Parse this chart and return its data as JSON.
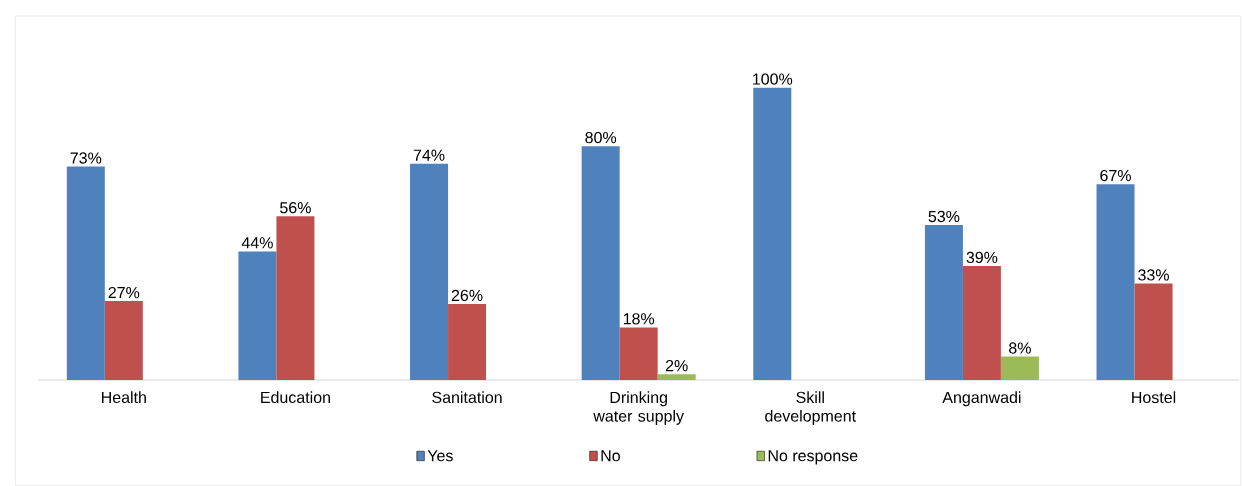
{
  "chart_data": {
    "type": "bar",
    "categories": [
      "Health",
      "Education",
      "Sanitation",
      "Drinking water supply",
      "Skill development",
      "Anganwadi",
      "Hostel"
    ],
    "series": [
      {
        "name": "Yes",
        "color": "#4f81bd",
        "values": [
          73,
          44,
          74,
          80,
          100,
          53,
          67
        ],
        "value_labels": [
          "73%",
          "44%",
          "74%",
          "80%",
          "100%",
          "53%",
          "67%"
        ]
      },
      {
        "name": "No",
        "color": "#c0504d",
        "values": [
          27,
          56,
          26,
          18,
          null,
          39,
          33
        ],
        "value_labels": [
          "27%",
          "56%",
          "26%",
          "18%",
          null,
          "39%",
          "33%"
        ]
      },
      {
        "name": "No response",
        "color": "#9bbb59",
        "values": [
          null,
          null,
          null,
          2,
          null,
          8,
          null
        ],
        "value_labels": [
          null,
          null,
          null,
          "2%",
          null,
          "8%",
          null
        ]
      }
    ],
    "legend": "bottom"
  }
}
